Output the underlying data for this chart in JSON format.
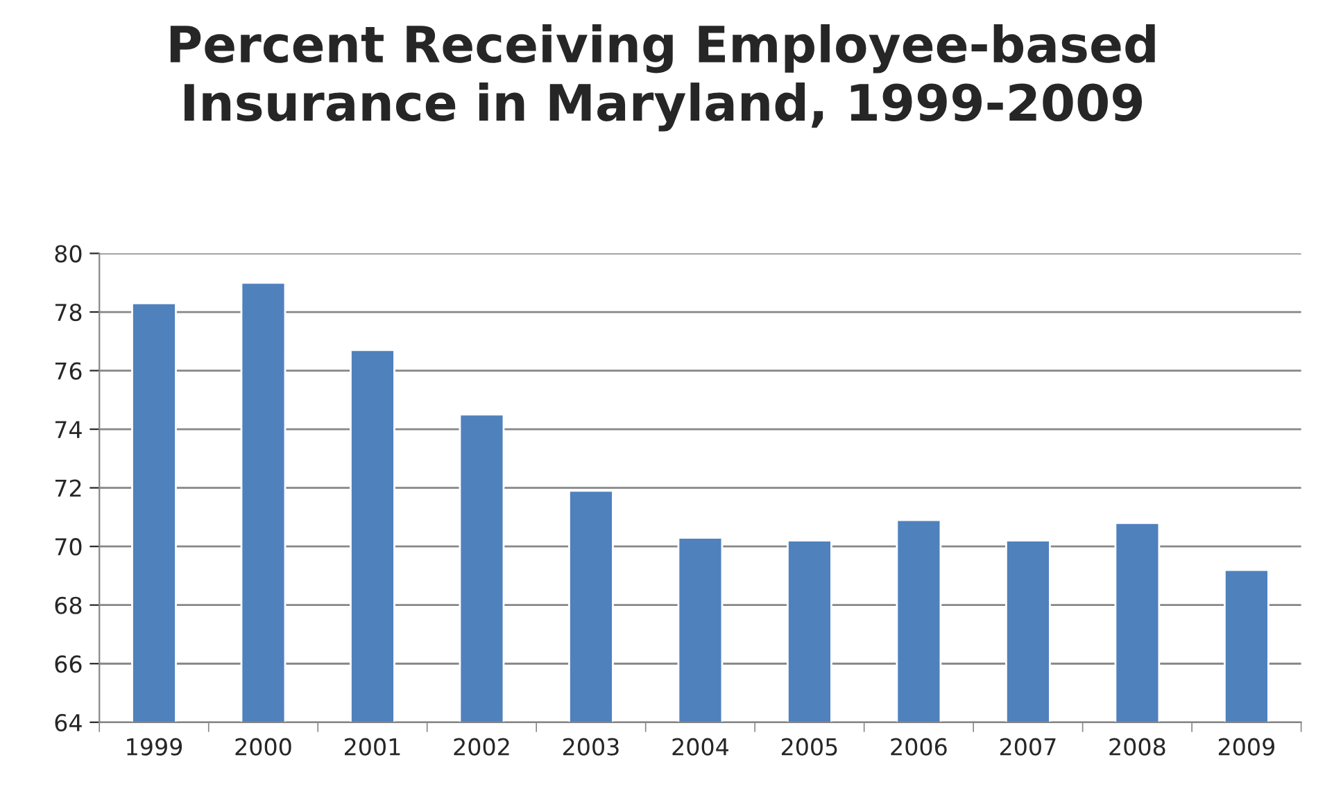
{
  "chart_data": {
    "type": "bar",
    "title": "Percent Receiving Employee-based\nInsurance in Maryland, 1999-2009",
    "categories": [
      "1999",
      "2000",
      "2001",
      "2002",
      "2003",
      "2004",
      "2005",
      "2006",
      "2007",
      "2008",
      "2009"
    ],
    "values": [
      78.3,
      79.0,
      76.7,
      74.5,
      71.9,
      70.3,
      70.2,
      70.9,
      70.2,
      70.8,
      69.2
    ],
    "color": "#4f81bd",
    "ylim": [
      64,
      80
    ],
    "yticks": [
      64,
      66,
      68,
      70,
      72,
      74,
      76,
      78,
      80
    ],
    "grid": "y"
  }
}
